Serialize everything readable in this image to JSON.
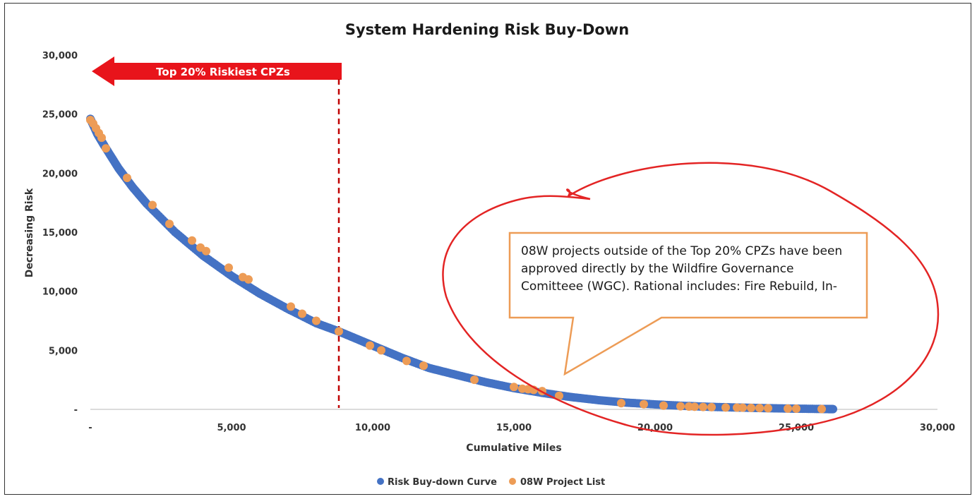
{
  "chart_data": {
    "type": "scatter",
    "title": "System Hardening Risk Buy-Down",
    "xlabel": "Cumulative Miles",
    "ylabel": "Decreasing Risk",
    "xlim": [
      0,
      30000
    ],
    "ylim": [
      0,
      30000
    ],
    "x_ticks": [
      "-",
      "5,000",
      "10,000",
      "15,000",
      "20,000",
      "25,000",
      "30,000"
    ],
    "y_ticks": [
      "-",
      "5,000",
      "10,000",
      "15,000",
      "20,000",
      "25,000",
      "30,000"
    ],
    "grid": false,
    "legend_position": "bottom",
    "series": [
      {
        "name": "Risk Buy-down Curve",
        "color": "#4472C4",
        "x": [
          0,
          250,
          500,
          1000,
          1500,
          2000,
          3000,
          4000,
          5000,
          6000,
          7000,
          8000,
          8800,
          9500,
          10000,
          11000,
          12000,
          13000,
          14000,
          15000,
          16000,
          17000,
          18000,
          19000,
          20000,
          21000,
          22000,
          23000,
          24000,
          25000,
          26000,
          26300
        ],
        "y": [
          24600,
          23300,
          22300,
          20400,
          18800,
          17400,
          15000,
          13000,
          11300,
          9800,
          8500,
          7300,
          6600,
          5900,
          5400,
          4400,
          3500,
          2900,
          2300,
          1800,
          1400,
          1050,
          780,
          570,
          420,
          300,
          210,
          150,
          100,
          60,
          30,
          20
        ]
      },
      {
        "name": "08W Project List",
        "color": "#ED9C56",
        "x": [
          0,
          100,
          200,
          300,
          400,
          550,
          1300,
          2200,
          2800,
          3600,
          3900,
          4100,
          4900,
          5400,
          5600,
          7100,
          7500,
          8000,
          8800,
          9900,
          10300,
          11200,
          11800,
          13600,
          15000,
          15300,
          15500,
          15700,
          16000,
          16600,
          18800,
          19600,
          20300,
          20900,
          21200,
          21400,
          21700,
          22000,
          22500,
          22900,
          23100,
          23400,
          23700,
          24000,
          24700,
          25000,
          25900
        ],
        "y": [
          24500,
          24200,
          23800,
          23400,
          23000,
          22100,
          19600,
          17300,
          15700,
          14300,
          13700,
          13400,
          12000,
          11200,
          11000,
          8700,
          8100,
          7500,
          6600,
          5400,
          5000,
          4100,
          3700,
          2500,
          1900,
          1750,
          1700,
          1650,
          1550,
          1150,
          520,
          430,
          320,
          260,
          240,
          220,
          200,
          190,
          160,
          150,
          140,
          130,
          115,
          100,
          70,
          60,
          30
        ]
      }
    ],
    "annotations": {
      "arrow_label": "Top 20% Riskiest CPZs",
      "arrow_color": "#E8141B",
      "cutoff_x": 8800,
      "cutoff_color": "#C00000",
      "ellipse_color": "#E32424",
      "callout_border": "#ED9C56",
      "callout_text": "08W projects outside of the Top 20% CPZs have been approved directly by the Wildfire Governance Comitteee (WGC). Rational includes: Fire Rebuild, In-"
    }
  }
}
